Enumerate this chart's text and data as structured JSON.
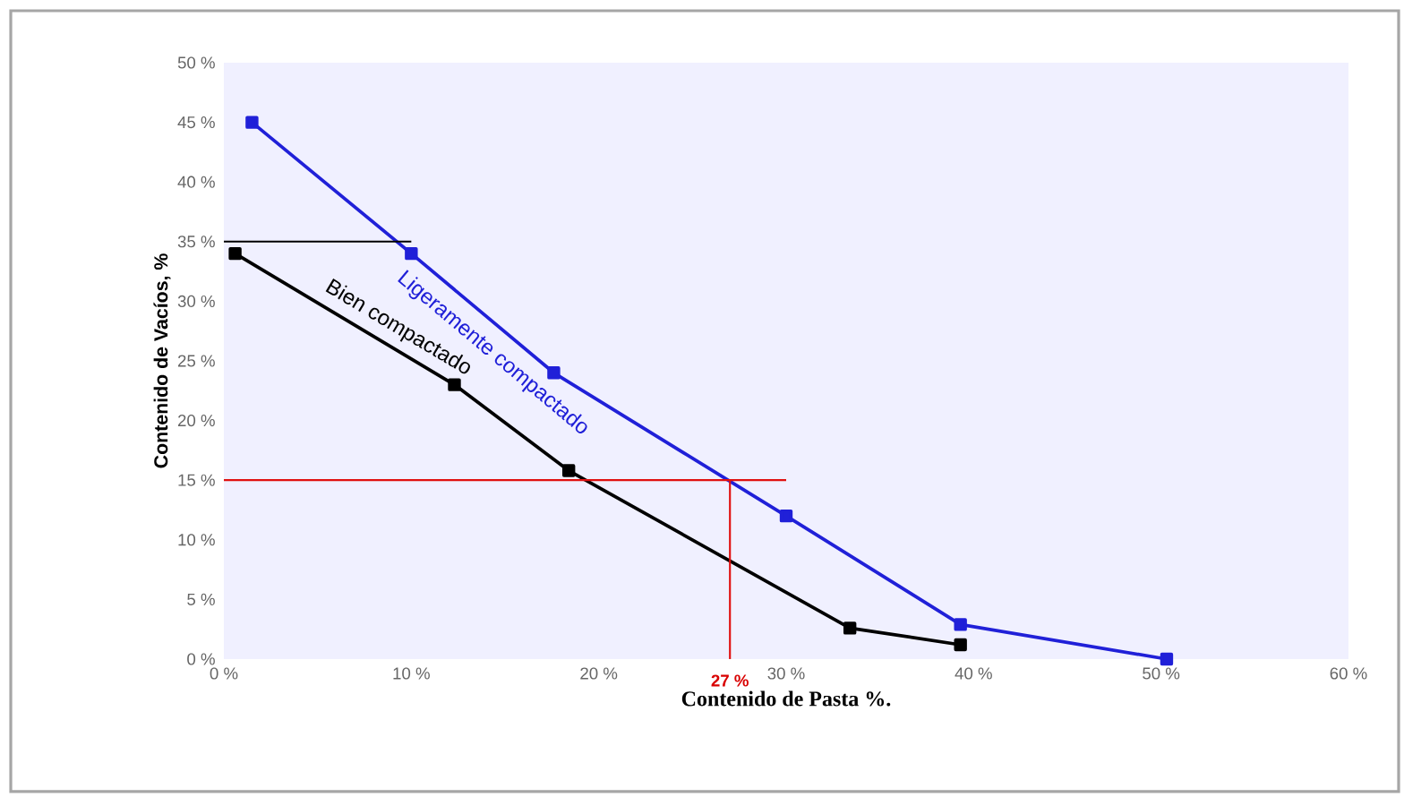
{
  "chart_data": {
    "type": "line",
    "xlabel": "Contenido de Pasta %.",
    "ylabel": "Contenido de Vacíos, %",
    "xlim": [
      0,
      60
    ],
    "ylim": [
      0,
      50
    ],
    "xticks": [
      {
        "value": 0,
        "label": "0 %"
      },
      {
        "value": 10,
        "label": "10 %"
      },
      {
        "value": 20,
        "label": "20 %"
      },
      {
        "value": 30,
        "label": "30 %"
      },
      {
        "value": 40,
        "label": "40 %"
      },
      {
        "value": 50,
        "label": "50 %"
      },
      {
        "value": 60,
        "label": "60 %"
      }
    ],
    "yticks": [
      {
        "value": 0,
        "label": "0 %"
      },
      {
        "value": 5,
        "label": "5 %"
      },
      {
        "value": 10,
        "label": "10 %"
      },
      {
        "value": 15,
        "label": "15 %"
      },
      {
        "value": 20,
        "label": "20 %"
      },
      {
        "value": 25,
        "label": "25 %"
      },
      {
        "value": 30,
        "label": "30 %"
      },
      {
        "value": 35,
        "label": "35 %"
      },
      {
        "value": 40,
        "label": "40 %"
      },
      {
        "value": 45,
        "label": "45 %"
      },
      {
        "value": 50,
        "label": "50 %"
      }
    ],
    "series": [
      {
        "name": "Ligeramente compactado",
        "color": "#2020d8",
        "marker": "square",
        "x": [
          1.5,
          10,
          17.6,
          30,
          39.3,
          50.3
        ],
        "values": [
          45,
          34,
          24,
          12,
          2.9,
          0
        ]
      },
      {
        "name": "Bien compactado",
        "color": "#000000",
        "marker": "square",
        "x": [
          0.6,
          12.3,
          18.4,
          33.4,
          39.3
        ],
        "values": [
          34,
          23,
          15.8,
          2.6,
          1.2
        ]
      },
      {
        "color": "#000000",
        "marker": "none",
        "x": [
          0,
          10
        ],
        "values": [
          35,
          35
        ]
      },
      {
        "color": "#e01010",
        "marker": "none",
        "x": [
          0,
          30
        ],
        "values": [
          15,
          15
        ]
      },
      {
        "color": "#e01010",
        "marker": "none",
        "x": [
          27,
          27
        ],
        "values": [
          0,
          15
        ]
      }
    ],
    "annotations": [
      {
        "text": "27 %",
        "x": 27,
        "y": 0
      }
    ]
  }
}
